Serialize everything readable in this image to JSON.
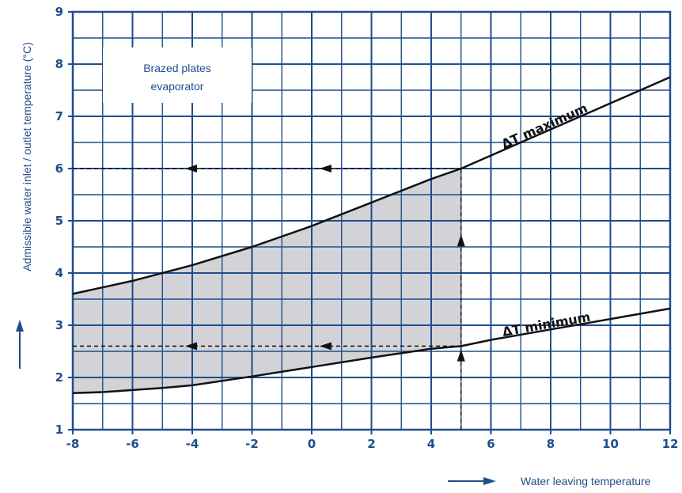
{
  "chart_data": {
    "type": "line",
    "xlabel": "Water leaving temperature",
    "ylabel": "Admissible water inlet / outlet temperature (°C)",
    "xlim": [
      -8,
      12
    ],
    "ylim": [
      1,
      9
    ],
    "x_ticks": [
      "-8",
      "-6",
      "-4",
      "-2",
      "0",
      "2",
      "4",
      "6",
      "8",
      "10",
      "12"
    ],
    "y_ticks": [
      "1",
      "2",
      "3",
      "4",
      "5",
      "6",
      "7",
      "8",
      "9"
    ],
    "grid": true,
    "series": [
      {
        "name": "ΔT maximum",
        "x": [
          -8,
          -6,
          -4,
          -2,
          0,
          2,
          4,
          5,
          6,
          8,
          10,
          12
        ],
        "y": [
          3.6,
          3.85,
          4.15,
          4.5,
          4.9,
          5.35,
          5.8,
          6.0,
          6.25,
          6.75,
          7.25,
          7.75
        ]
      },
      {
        "name": "ΔT minimum",
        "x": [
          -8,
          -7,
          -5,
          -4,
          -2,
          0,
          2,
          4,
          5,
          6,
          8,
          10,
          12
        ],
        "y": [
          1.7,
          1.72,
          1.8,
          1.85,
          2.02,
          2.2,
          2.38,
          2.55,
          2.6,
          2.72,
          2.92,
          3.12,
          3.32
        ]
      }
    ],
    "shaded_region": {
      "x_from": -8,
      "x_to": 5,
      "between": [
        "ΔT minimum",
        "ΔT maximum"
      ],
      "color": "#d3d3d7"
    },
    "reference_x": 5,
    "reference_y": [
      6.0,
      2.6
    ],
    "annotation_box": {
      "line1": "Brazed plates",
      "line2": "evaporator"
    },
    "curve_labels": {
      "max": "ΔT maximum",
      "min": "ΔT minimum"
    },
    "colors": {
      "grid": "#1f4e8c",
      "curve": "#111111",
      "shade": "#d3d3d7",
      "text": "#1f4e8c"
    }
  }
}
